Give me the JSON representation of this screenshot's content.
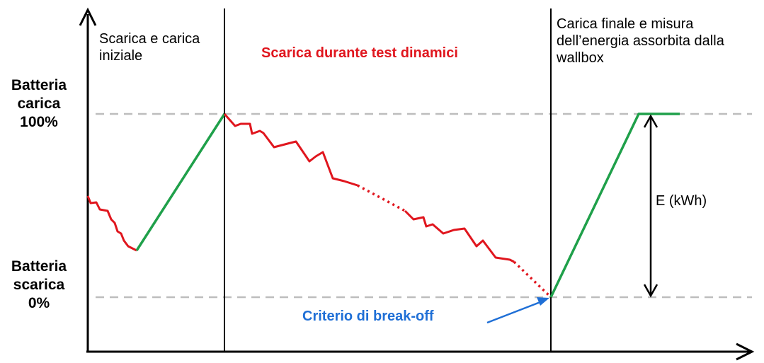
{
  "y_labels": {
    "top": [
      "Batteria",
      "carica",
      "100%"
    ],
    "bottom": [
      "Batteria",
      "scarica",
      "0%"
    ]
  },
  "phases": {
    "phase1": [
      "Scarica e carica",
      "iniziale"
    ],
    "phase2": "Scarica durante test dinamici",
    "phase3": [
      "Carica finale e misura",
      "dell’energia assorbita dalla",
      "wallbox"
    ]
  },
  "energy_label": "E (kWh)",
  "breakoff_label": "Criterio di break-off",
  "colors": {
    "discharge": "#e0161e",
    "charge": "#1fa04a",
    "annotation": "#1f6fd6",
    "reference": "#bdbdbd",
    "axis": "#000000"
  }
}
